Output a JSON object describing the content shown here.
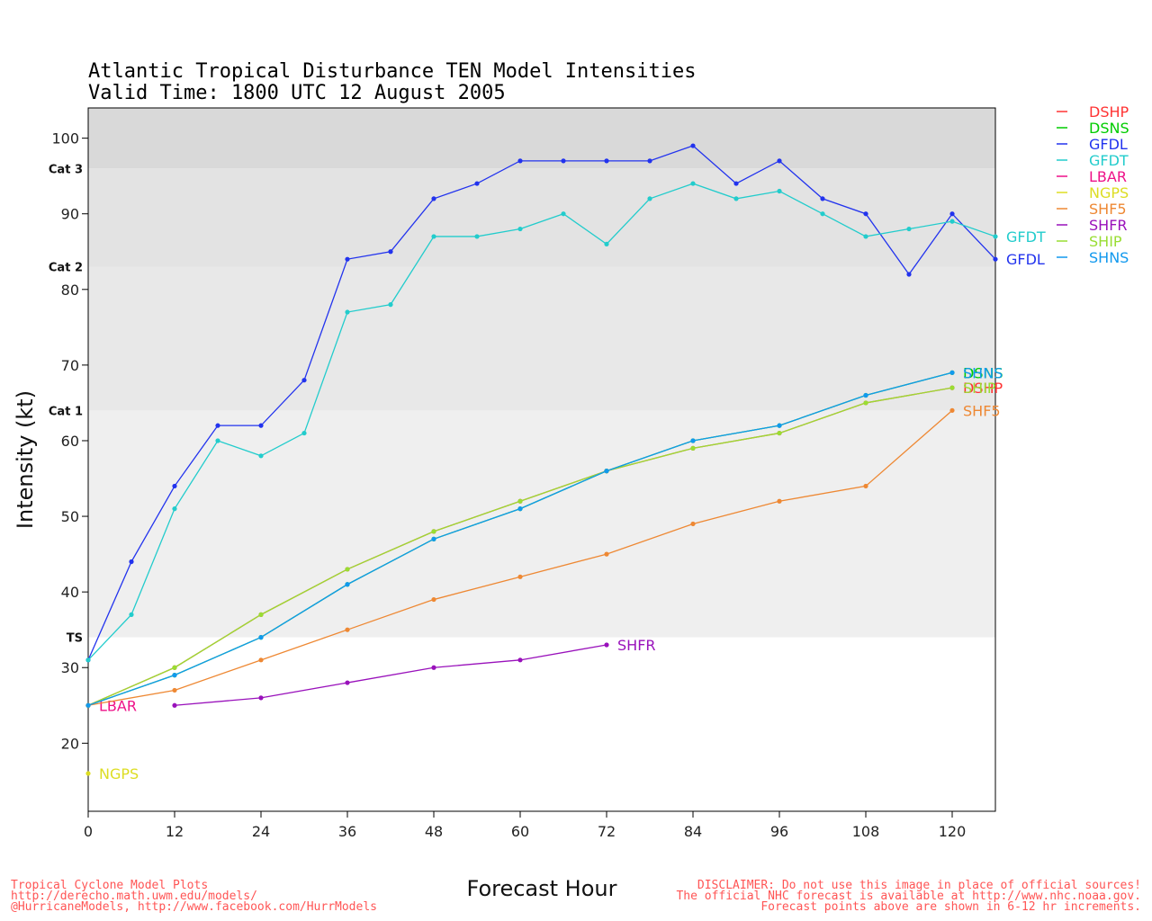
{
  "chart_data": {
    "type": "line",
    "title": "Atlantic Tropical Disturbance TEN Model Intensities",
    "subtitle": "Valid Time: 1800 UTC 12 August 2005",
    "xlabel": "Forecast Hour",
    "ylabel": "Intensity (kt)",
    "xlim": [
      0,
      126
    ],
    "ylim": [
      11,
      104
    ],
    "xticks": [
      "0",
      "12",
      "24",
      "36",
      "48",
      "60",
      "72",
      "84",
      "96",
      "108",
      "120"
    ],
    "yticks": [
      "20",
      "30",
      "40",
      "50",
      "60",
      "70",
      "80",
      "90",
      "100"
    ],
    "bands": [
      {
        "label": "TS",
        "from": 34,
        "to": 64,
        "color": "#efefef"
      },
      {
        "label": "Cat 1",
        "from": 64,
        "to": 83,
        "color": "#e8e8e8"
      },
      {
        "label": "Cat 2",
        "from": 83,
        "to": 96,
        "color": "#e3e3e3"
      },
      {
        "label": "Cat 3",
        "from": 96,
        "to": 104,
        "color": "#d9d9d9"
      }
    ],
    "series": [
      {
        "name": "DSHP",
        "color": "#ff3333",
        "x": [
          0,
          12,
          24,
          36,
          48,
          60,
          72,
          84,
          96,
          108,
          120
        ],
        "y": [
          25,
          30,
          37,
          43,
          48,
          52,
          56,
          59,
          61,
          65,
          67
        ],
        "end_label": "DSHP"
      },
      {
        "name": "DSNS",
        "color": "#00cc00",
        "x": [
          0,
          12,
          24,
          36,
          48,
          60,
          72,
          84,
          96,
          108,
          120
        ],
        "y": [
          25,
          29,
          34,
          41,
          47,
          51,
          56,
          60,
          62,
          66,
          69
        ],
        "end_label": "DSNS"
      },
      {
        "name": "GFDL",
        "color": "#2233ee",
        "x": [
          0,
          6,
          12,
          18,
          24,
          30,
          36,
          42,
          48,
          54,
          60,
          66,
          72,
          78,
          84,
          90,
          96,
          102,
          108,
          114,
          120,
          126
        ],
        "y": [
          31,
          44,
          54,
          62,
          62,
          68,
          84,
          85,
          92,
          94,
          97,
          97,
          97,
          97,
          99,
          94,
          97,
          92,
          90,
          82,
          90,
          84
        ],
        "end_label": "GFDL"
      },
      {
        "name": "GFDT",
        "color": "#22cccc",
        "x": [
          0,
          6,
          12,
          18,
          24,
          30,
          36,
          42,
          48,
          54,
          60,
          66,
          72,
          78,
          84,
          90,
          96,
          102,
          108,
          114,
          120,
          126
        ],
        "y": [
          31,
          37,
          51,
          60,
          58,
          61,
          77,
          78,
          87,
          87,
          88,
          90,
          86,
          92,
          94,
          92,
          93,
          90,
          87,
          88,
          89,
          87
        ],
        "end_label": "GFDT"
      },
      {
        "name": "LBAR",
        "color": "#ee1188",
        "x": [
          0
        ],
        "y": [
          25
        ],
        "end_label": "LBAR"
      },
      {
        "name": "NGPS",
        "color": "#dddd22",
        "x": [
          0
        ],
        "y": [
          16
        ],
        "end_label": "NGPS"
      },
      {
        "name": "SHF5",
        "color": "#ee8833",
        "x": [
          0,
          12,
          24,
          36,
          48,
          60,
          72,
          84,
          96,
          108,
          120
        ],
        "y": [
          25,
          27,
          31,
          35,
          39,
          42,
          45,
          49,
          52,
          54,
          64
        ],
        "end_label": "SHF5"
      },
      {
        "name": "SHFR",
        "color": "#9911bb",
        "x": [
          12,
          24,
          36,
          48,
          60,
          72
        ],
        "y": [
          25,
          26,
          28,
          30,
          31,
          33
        ],
        "end_label": "SHFR"
      },
      {
        "name": "SHIP",
        "color": "#99dd33",
        "x": [
          0,
          12,
          24,
          36,
          48,
          60,
          72,
          84,
          96,
          108,
          120
        ],
        "y": [
          25,
          30,
          37,
          43,
          48,
          52,
          56,
          59,
          61,
          65,
          67
        ],
        "end_label": "SHIP"
      },
      {
        "name": "SHNS",
        "color": "#1199ee",
        "x": [
          0,
          12,
          24,
          36,
          48,
          60,
          72,
          84,
          96,
          108,
          120
        ],
        "y": [
          25,
          29,
          34,
          41,
          47,
          51,
          56,
          60,
          62,
          66,
          69
        ],
        "end_label": "SHNS"
      }
    ]
  },
  "footer": {
    "left_line1": "Tropical Cyclone Model Plots",
    "left_line2": "http://derecho.math.uwm.edu/models/",
    "left_line3": "@HurricaneModels, http://www.facebook.com/HurrModels",
    "right_line1": "DISCLAIMER: Do not use this image in place of official sources!",
    "right_line2": "The official NHC forecast is available at http://www.nhc.noaa.gov.",
    "right_line3": "Forecast points above are shown in 6-12 hr increments."
  }
}
